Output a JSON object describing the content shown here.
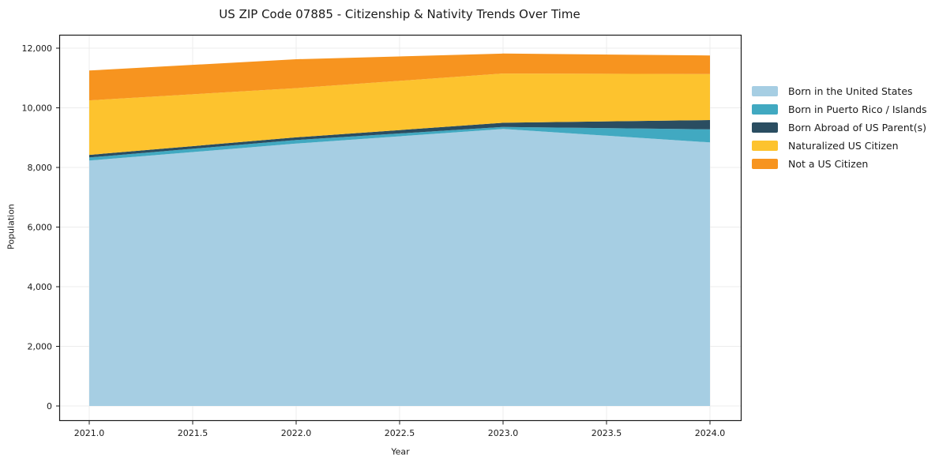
{
  "title": "US ZIP Code 07885 - Citizenship & Nativity Trends Over Time",
  "chart_data": {
    "type": "area",
    "stacked": true,
    "title": "US ZIP Code 07885 - Citizenship & Nativity Trends Over Time",
    "xlabel": "Year",
    "ylabel": "Population",
    "x": [
      2021,
      2022,
      2023,
      2024
    ],
    "x_tick_labels": [
      "2021.0",
      "2021.5",
      "2022.0",
      "2022.5",
      "2023.0",
      "2023.5",
      "2024.0"
    ],
    "y_ticks": [
      0,
      2000,
      4000,
      6000,
      8000,
      10000,
      12000
    ],
    "y_tick_labels": [
      "0",
      "2,000",
      "4,000",
      "6,000",
      "8,000",
      "10,000",
      "12,000"
    ],
    "xlim": [
      2020.85,
      2024.15
    ],
    "ylim": [
      -500,
      12450
    ],
    "grid": true,
    "legend_position": "right",
    "series": [
      {
        "name": "Born in the United States",
        "color": "#a6cee3",
        "values": [
          8230,
          8800,
          9290,
          8840
        ]
      },
      {
        "name": "Born in Puerto Rico / Islands",
        "color": "#41a9c1",
        "values": [
          105,
          120,
          70,
          440
        ]
      },
      {
        "name": "Born Abroad of US Parent(s)",
        "color": "#2a4d61",
        "values": [
          85,
          90,
          140,
          310
        ]
      },
      {
        "name": "Naturalized US Citizen",
        "color": "#fdc32e",
        "values": [
          1830,
          1650,
          1650,
          1540
        ]
      },
      {
        "name": "Not a US Citizen",
        "color": "#f7941f",
        "values": [
          1000,
          970,
          670,
          625
        ]
      }
    ],
    "stack_totals": [
      11250,
      11630,
      11820,
      11755
    ]
  },
  "colors": {
    "background": "#ffffff",
    "grid": "#ececec",
    "spine": "#1a1a1a",
    "text": "#1a1a1a"
  }
}
